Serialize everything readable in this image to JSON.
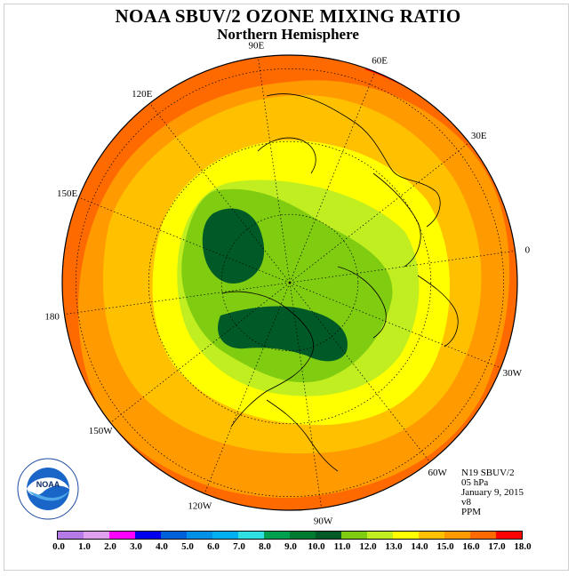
{
  "title": "NOAA SBUV/2 OZONE MIXING RATIO",
  "subtitle": "Northern Hemisphere",
  "info": {
    "instrument": "N19 SBUV/2",
    "level": "05 hPa",
    "date": "January 9, 2015",
    "version": "v8",
    "units": "PPM"
  },
  "longitude_labels": [
    {
      "text": "90E",
      "lon": 90
    },
    {
      "text": "60E",
      "lon": 60
    },
    {
      "text": "30E",
      "lon": 30
    },
    {
      "text": "0",
      "lon": 0
    },
    {
      "text": "30W",
      "lon": -30
    },
    {
      "text": "60W",
      "lon": -60
    },
    {
      "text": "90W",
      "lon": -90
    },
    {
      "text": "120W",
      "lon": -120
    },
    {
      "text": "150W",
      "lon": -150
    },
    {
      "text": "180",
      "lon": 180
    },
    {
      "text": "150E",
      "lon": 150
    },
    {
      "text": "120E",
      "lon": 120
    }
  ],
  "colorbar": {
    "ticks": [
      "0.0",
      "1.0",
      "2.0",
      "3.0",
      "4.0",
      "5.0",
      "6.0",
      "7.0",
      "8.0",
      "9.0",
      "10.0",
      "11.0",
      "12.0",
      "13.0",
      "14.0",
      "15.0",
      "16.0",
      "17.0",
      "18.0"
    ],
    "colors": [
      "#b57ae6",
      "#e0a0f0",
      "#ff00ff",
      "#0000ee",
      "#0060d8",
      "#0090e8",
      "#00b0f0",
      "#30e0e0",
      "#00a050",
      "#007a30",
      "#005a28",
      "#80cc10",
      "#c0ee20",
      "#ffff00",
      "#ffc000",
      "#ff9a00",
      "#ff6a00",
      "#ff0000",
      "#8b5030"
    ]
  },
  "legend_mark_text": "NOAA"
}
